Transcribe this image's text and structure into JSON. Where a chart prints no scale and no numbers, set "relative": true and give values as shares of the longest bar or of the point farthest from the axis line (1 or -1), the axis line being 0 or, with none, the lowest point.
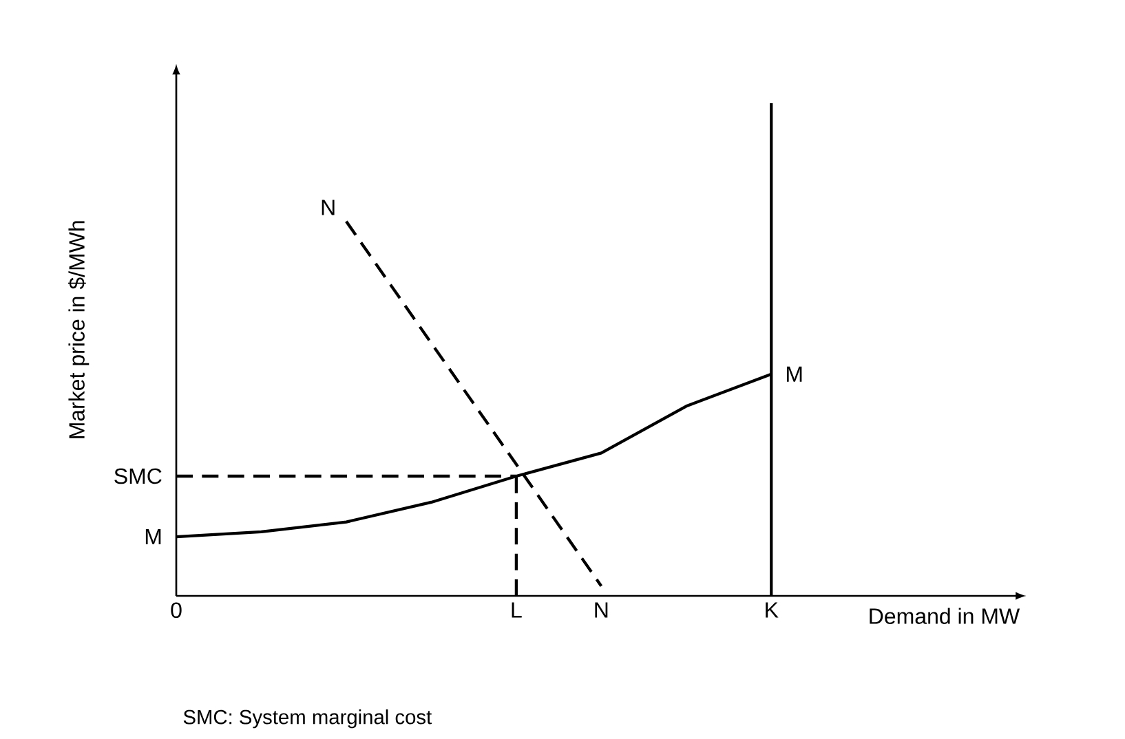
{
  "chart_data": {
    "type": "line",
    "relative": true,
    "xlabel": "Demand in MW",
    "ylabel": "Market price in $/MWh",
    "categories": [
      "0",
      null,
      null,
      null,
      "L",
      "N",
      null,
      "K",
      null,
      null,
      null
    ],
    "series": [
      {
        "name": "M",
        "color": "#000000",
        "line_style": "solid",
        "values": [
          0.12,
          0.13,
          0.15,
          0.19,
          0.243,
          0.29,
          0.385,
          0.45,
          null,
          null,
          null
        ]
      },
      {
        "color": "#000000",
        "line_style": "solid",
        "x": [
          "K",
          "K"
        ],
        "values": [
          0,
          1
        ]
      },
      {
        "name": "N",
        "color": "#000000",
        "line_style": "dashed",
        "values": [
          null,
          null,
          0.76,
          0.513,
          0.267,
          0.02,
          null,
          null,
          null,
          null,
          null
        ]
      },
      {
        "name": "SMC",
        "color": "#000000",
        "line_style": "dashed",
        "x": [
          "0",
          "L"
        ],
        "values": [
          0.243,
          0.243
        ]
      },
      {
        "color": "#000000",
        "line_style": "dashed",
        "x": [
          "L",
          "L"
        ],
        "values": [
          0,
          0.243
        ]
      }
    ],
    "annotations": [
      {
        "text": "M",
        "x": "K",
        "y": 0.45
      },
      "SMC: System marginal cost"
    ]
  }
}
